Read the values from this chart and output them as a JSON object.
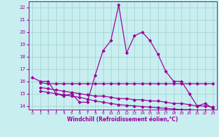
{
  "xlabel": "Windchill (Refroidissement éolien,°C)",
  "xlim": [
    -0.5,
    23.5
  ],
  "ylim": [
    13.7,
    22.5
  ],
  "yticks": [
    14,
    15,
    16,
    17,
    18,
    19,
    20,
    21,
    22
  ],
  "xticks": [
    0,
    1,
    2,
    3,
    4,
    5,
    6,
    7,
    8,
    9,
    10,
    11,
    12,
    13,
    14,
    15,
    16,
    17,
    18,
    19,
    20,
    21,
    22,
    23
  ],
  "background_color": "#c8eef0",
  "grid_color": "#9ecece",
  "line_color": "#990099",
  "line1_x": [
    0,
    1,
    2,
    3,
    4,
    5,
    6,
    7,
    8,
    9,
    10,
    11,
    12,
    13,
    14,
    15,
    16,
    17,
    18,
    19,
    20,
    21,
    22,
    23
  ],
  "line1_y": [
    16.3,
    16.0,
    16.0,
    15.0,
    14.8,
    15.0,
    14.3,
    14.3,
    16.5,
    18.5,
    19.3,
    22.2,
    18.3,
    19.7,
    20.0,
    19.3,
    18.2,
    16.8,
    16.0,
    16.0,
    15.0,
    14.0,
    14.2,
    13.8
  ],
  "line2_x": [
    1,
    2,
    3,
    4,
    5,
    6,
    7,
    8,
    9,
    10,
    11,
    12,
    13,
    14,
    15,
    16,
    17,
    18,
    19,
    20,
    21,
    22,
    23
  ],
  "line2_y": [
    15.9,
    15.8,
    15.8,
    15.8,
    15.8,
    15.8,
    15.8,
    15.8,
    15.8,
    15.8,
    15.8,
    15.8,
    15.8,
    15.8,
    15.8,
    15.8,
    15.8,
    15.8,
    15.8,
    15.8,
    15.8,
    15.8,
    15.8
  ],
  "line3_x": [
    1,
    2,
    3,
    4,
    5,
    6,
    7,
    8,
    9,
    10,
    11,
    12,
    13,
    14,
    15,
    16,
    17,
    18,
    19,
    20,
    21,
    22,
    23
  ],
  "line3_y": [
    15.5,
    15.4,
    15.3,
    15.2,
    15.1,
    15.0,
    14.9,
    14.8,
    14.8,
    14.7,
    14.6,
    14.6,
    14.5,
    14.5,
    14.4,
    14.4,
    14.3,
    14.2,
    14.2,
    14.1,
    14.0,
    14.0,
    13.9
  ],
  "line4_x": [
    1,
    2,
    3,
    4,
    5,
    6,
    7,
    8,
    9,
    10,
    11,
    12,
    13,
    14,
    15,
    16,
    17,
    18,
    19,
    20,
    21,
    22,
    23
  ],
  "line4_y": [
    15.2,
    15.1,
    15.0,
    14.9,
    14.8,
    14.7,
    14.55,
    14.4,
    14.3,
    14.2,
    14.1,
    14.05,
    14.0,
    13.95,
    13.9,
    13.85,
    13.8,
    13.75,
    13.7,
    13.7,
    13.65,
    13.62,
    13.6
  ]
}
